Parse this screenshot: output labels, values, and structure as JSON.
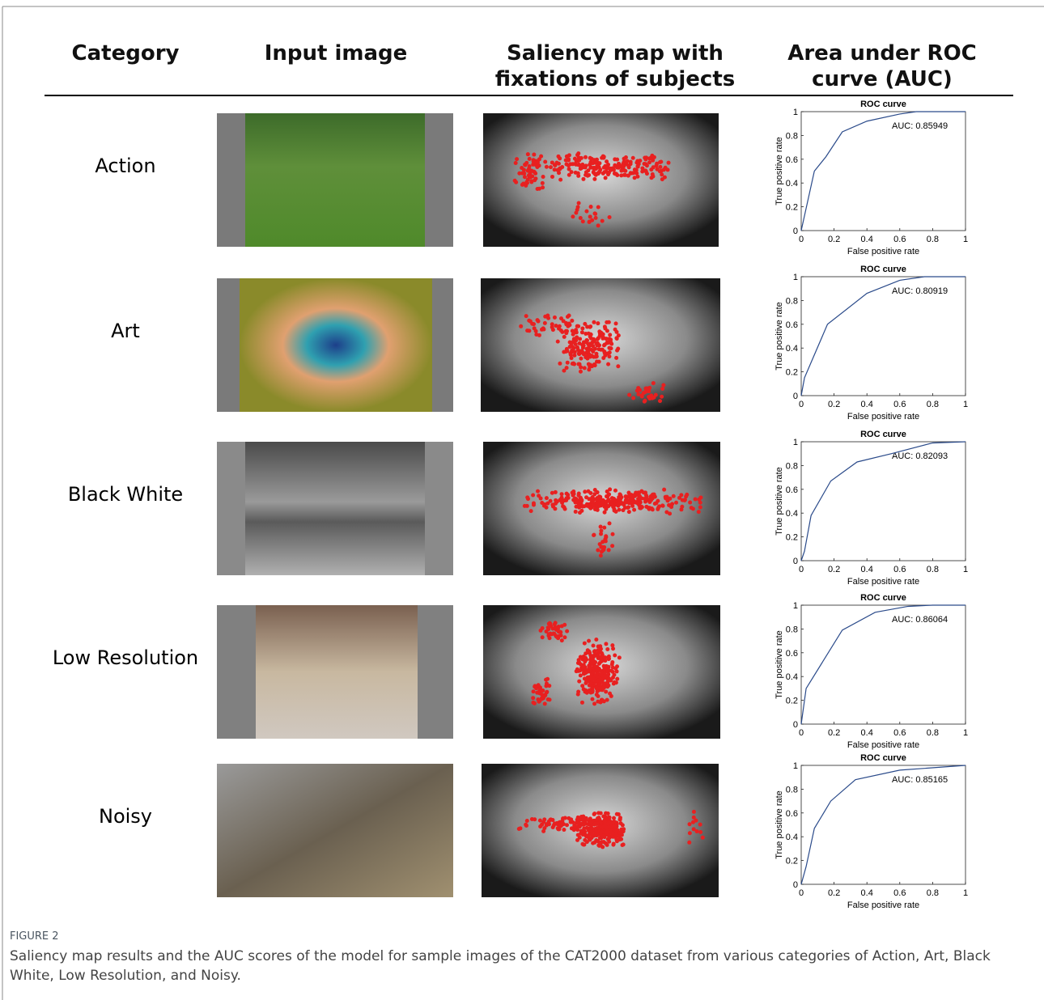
{
  "table": {
    "headers": [
      "Category",
      "Input image",
      "Saliency map with fixations of subjects",
      "Area under ROC curve (AUC)"
    ],
    "categories": [
      "Action",
      "Art",
      "Black White",
      "Low Resolution",
      "Noisy"
    ]
  },
  "chart_data": [
    {
      "type": "line",
      "title": "ROC curve",
      "x_label": "False positive rate",
      "y_label": "True positive rate",
      "annotation": "AUC: 0.85949",
      "x": [
        0,
        0.08,
        0.15,
        0.25,
        0.4,
        0.6,
        0.7,
        1
      ],
      "series": [
        {
          "color": "#2a4a8a",
          "values": [
            0,
            0.5,
            0.62,
            0.83,
            0.92,
            0.98,
            1,
            1
          ]
        }
      ],
      "xlim": [
        0,
        1
      ],
      "ylim": [
        0,
        1
      ],
      "xticks": [
        0,
        0.2,
        0.4,
        0.6,
        0.8,
        1
      ],
      "yticks": [
        0,
        0.2,
        0.4,
        0.6,
        0.8,
        1
      ]
    },
    {
      "type": "line",
      "title": "ROC curve",
      "x_label": "False positive rate",
      "y_label": "True positive rate",
      "annotation": "AUC: 0.80919",
      "x": [
        0,
        0.02,
        0.16,
        0.4,
        0.6,
        0.75,
        1
      ],
      "series": [
        {
          "color": "#2a4a8a",
          "values": [
            0,
            0.15,
            0.6,
            0.86,
            0.97,
            1,
            1
          ]
        }
      ],
      "xlim": [
        0,
        1
      ],
      "ylim": [
        0,
        1
      ],
      "xticks": [
        0,
        0.2,
        0.4,
        0.6,
        0.8,
        1
      ],
      "yticks": [
        0,
        0.2,
        0.4,
        0.6,
        0.8,
        1
      ]
    },
    {
      "type": "line",
      "title": "ROC curve",
      "x_label": "False positive rate",
      "y_label": "True positive rate",
      "annotation": "AUC: 0.82093",
      "x": [
        0,
        0.02,
        0.06,
        0.18,
        0.34,
        0.55,
        0.8,
        1
      ],
      "series": [
        {
          "color": "#2a4a8a",
          "values": [
            0,
            0.08,
            0.38,
            0.67,
            0.83,
            0.9,
            0.99,
            1
          ]
        }
      ],
      "xlim": [
        0,
        1
      ],
      "ylim": [
        0,
        1
      ],
      "xticks": [
        0,
        0.2,
        0.4,
        0.6,
        0.8,
        1
      ],
      "yticks": [
        0,
        0.2,
        0.4,
        0.6,
        0.8,
        1
      ]
    },
    {
      "type": "line",
      "title": "ROC curve",
      "x_label": "False positive rate",
      "y_label": "True positive rate",
      "annotation": "AUC: 0.86064",
      "x": [
        0,
        0.03,
        0.25,
        0.45,
        0.65,
        0.8,
        1
      ],
      "series": [
        {
          "color": "#2a4a8a",
          "values": [
            0,
            0.3,
            0.79,
            0.94,
            0.99,
            1,
            1
          ]
        }
      ],
      "xlim": [
        0,
        1
      ],
      "ylim": [
        0,
        1
      ],
      "xticks": [
        0,
        0.2,
        0.4,
        0.6,
        0.8,
        1
      ],
      "yticks": [
        0,
        0.2,
        0.4,
        0.6,
        0.8,
        1
      ]
    },
    {
      "type": "line",
      "title": "ROC curve",
      "x_label": "False positive rate",
      "y_label": "True positive rate",
      "annotation": "AUC: 0.85165",
      "x": [
        0,
        0.03,
        0.08,
        0.18,
        0.33,
        0.6,
        1
      ],
      "series": [
        {
          "color": "#2a4a8a",
          "values": [
            0,
            0.15,
            0.47,
            0.7,
            0.88,
            0.96,
            1
          ]
        }
      ],
      "xlim": [
        0,
        1
      ],
      "ylim": [
        0,
        1
      ],
      "xticks": [
        0,
        0.2,
        0.4,
        0.6,
        0.8,
        1
      ],
      "yticks": [
        0,
        0.2,
        0.4,
        0.6,
        0.8,
        1
      ]
    }
  ],
  "caption": {
    "label": "FIGURE 2",
    "text": "Saliency map results and the AUC scores of the model for sample images of the CAT2000 dataset from various categories of Action, Art, Black White, Low Resolution, and Noisy."
  }
}
